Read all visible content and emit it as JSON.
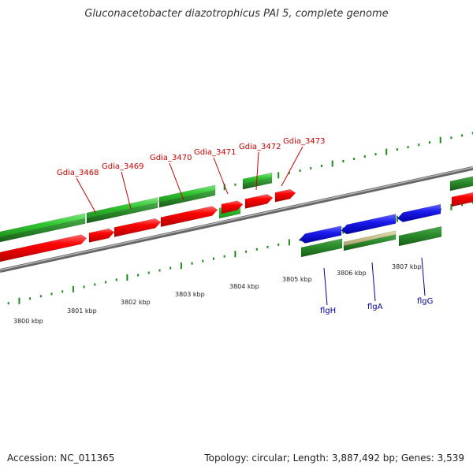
{
  "title": "Gluconacetobacter diazotrophicus PAI 5, complete genome",
  "footer": {
    "accession": "Accession: NC_011365",
    "stats": "Topology: circular; Length: 3,887,492 bp; Genes: 3,539"
  },
  "kbp_labels": [
    "3800 kbp",
    "3801 kbp",
    "3802 kbp",
    "3803 kbp",
    "3804 kbp",
    "3805 kbp",
    "3806 kbp",
    "3807 kbp"
  ],
  "top_gene_labels": [
    "Gdia_3468",
    "Gdia_3469",
    "Gdia_3470",
    "Gdia_3471",
    "Gdia_3472",
    "Gdia_3473"
  ],
  "bottom_gene_labels": [
    "flgH",
    "flgA",
    "flgG"
  ],
  "colors": {
    "forward_gene": "#ee0000",
    "light_green": "#33cc33",
    "dark_green": "#2a8a2a",
    "reverse_gene": "#1a1aee",
    "backbone": "#888888",
    "red_label": "#cc0000",
    "blue_label": "#000099"
  }
}
